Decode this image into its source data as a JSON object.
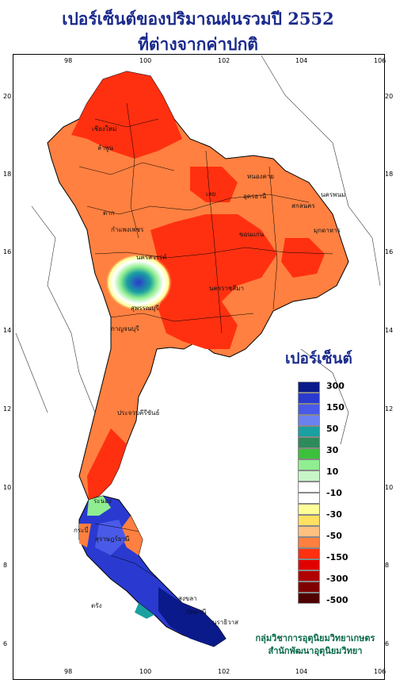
{
  "title_line1": "เปอร์เซ็นต์ของปริมาณฝนรวมปี 2552",
  "title_line2": "ที่ต่างจากค่าปกติ",
  "legend_title": "เปอร์เซ็นต์",
  "legend_levels": [
    "300",
    "150",
    "50",
    "30",
    "10",
    "-10",
    "-30",
    "-50",
    "-150",
    "-300",
    "-500"
  ],
  "legend_colors": [
    "#0a1a8a",
    "#2a3ad0",
    "#4a5ae8",
    "#6a82f0",
    "#1aa0a0",
    "#2e8a5a",
    "#3cc03c",
    "#90ee90",
    "#c8f5c8",
    "#ffffff",
    "#ffffff",
    "#ffff99",
    "#ffe060",
    "#ffc080",
    "#ff8040",
    "#ff3010",
    "#e00000",
    "#b00000",
    "#800000",
    "#500000"
  ],
  "lon_ticks": [
    "98",
    "100",
    "102",
    "104",
    "106"
  ],
  "lat_ticks": [
    "20",
    "18",
    "16",
    "14",
    "12",
    "10",
    "8",
    "6"
  ],
  "credit_line1": "กลุ่มวิชาการอุตุนิยมวิทยาเกษตร",
  "credit_line2": "สำนักพัฒนาอุตุนิยมวิทยา",
  "province_labels": [
    "เชียงใหม่",
    "ลำพูน",
    "ตาก",
    "กำแพงเพชร",
    "นครสวรรค์",
    "สุพรรณบุรี",
    "กาญจนบุรี",
    "หนองคาย",
    "อุดรธานี",
    "สกลนคร",
    "นครพนม",
    "มุกดาหาร",
    "ขอนแก่น",
    "นครราชสีมา",
    "ประจวบคีรีขันธ์",
    "ระนอง",
    "สุราษฎร์ธานี",
    "กระบี่",
    "ตรัง",
    "สงขลา",
    "ปัตตานี",
    "นราธิวาส",
    "เลย"
  ]
}
